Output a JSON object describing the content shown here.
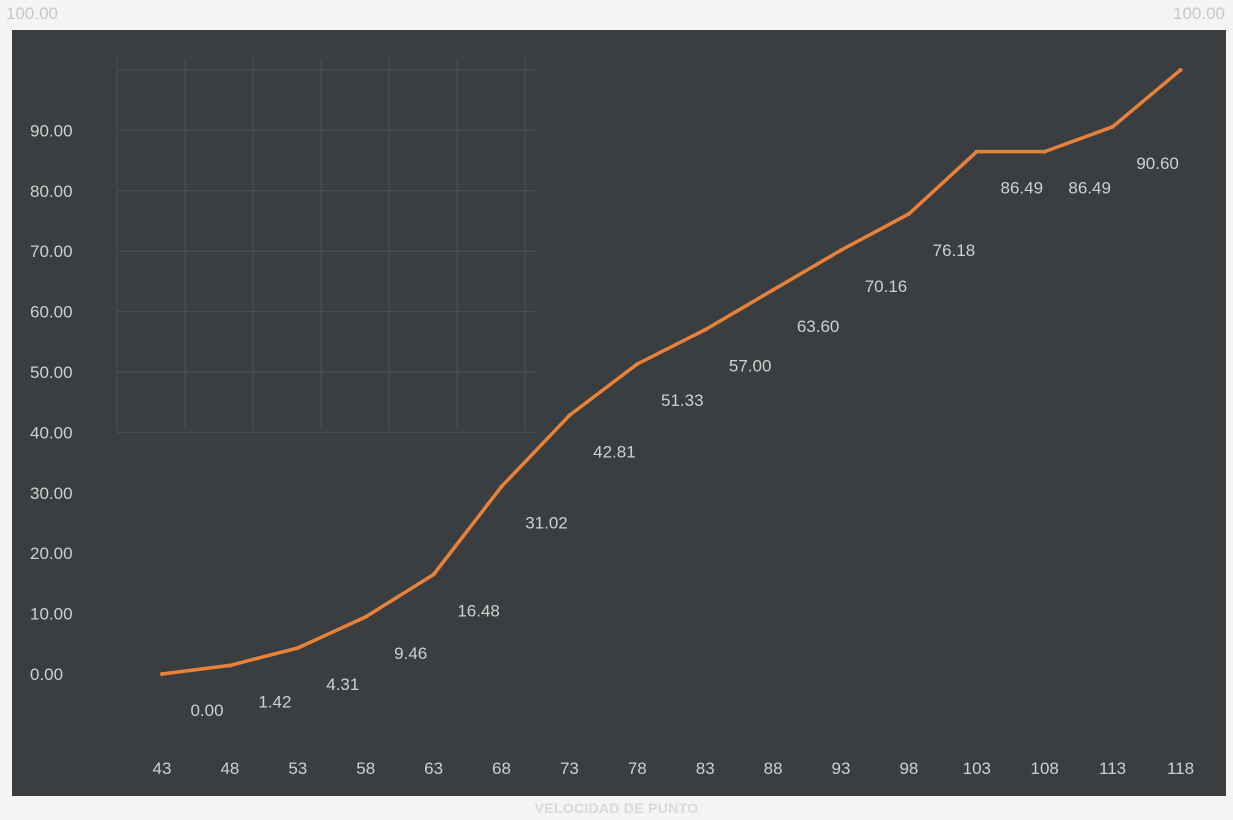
{
  "corner_labels": {
    "left": "100.00",
    "right": "100.00"
  },
  "colors": {
    "background": "#3a3e40",
    "line": "#e8823a",
    "text": "#cfcfcf",
    "grid": "#5a5e60"
  },
  "chart_data": {
    "type": "line",
    "title": "",
    "xlabel": "VELOCIDAD DE PUNTO",
    "ylabel": "",
    "grid": true,
    "categories": [
      "43",
      "48",
      "53",
      "58",
      "63",
      "68",
      "73",
      "78",
      "83",
      "88",
      "93",
      "98",
      "103",
      "108",
      "113",
      "118"
    ],
    "ytick_labels": [
      "0.00",
      "10.00",
      "20.00",
      "30.00",
      "40.00",
      "50.00",
      "60.00",
      "70.00",
      "80.00",
      "90.00"
    ],
    "ylim": [
      0,
      100
    ],
    "series": [
      {
        "values": [
          0.0,
          1.42,
          4.31,
          9.46,
          16.48,
          31.02,
          42.81,
          51.33,
          57.0,
          63.6,
          70.16,
          76.18,
          86.49,
          86.49,
          90.6,
          100.0
        ]
      }
    ],
    "data_labels": [
      "0.00",
      "1.42",
      "4.31",
      "9.46",
      "16.48",
      "31.02",
      "42.81",
      "51.33",
      "57.00",
      "63.60",
      "70.16",
      "76.18",
      "86.49",
      "86.49",
      "90.60",
      ""
    ]
  }
}
